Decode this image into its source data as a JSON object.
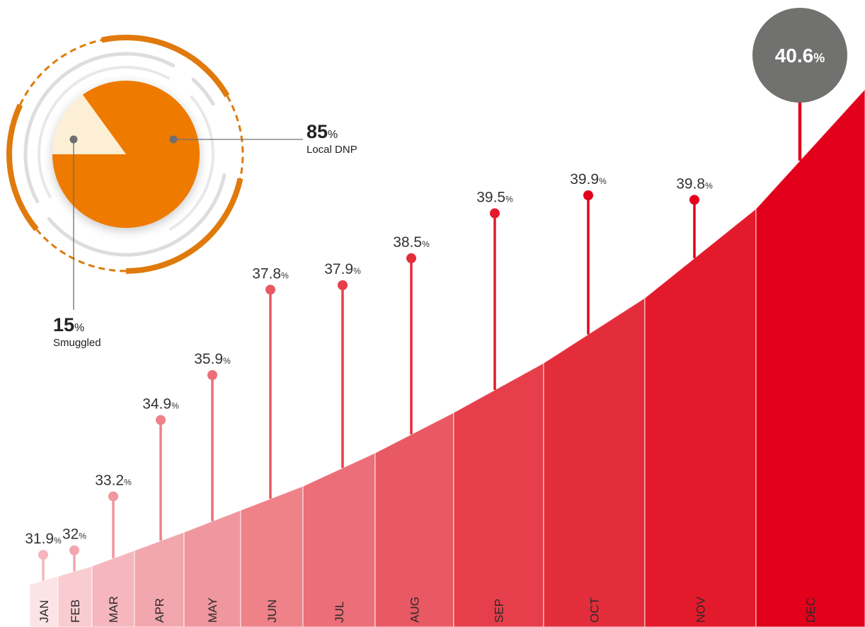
{
  "chart_data": [
    {
      "type": "pie",
      "slices": [
        {
          "label": "Local DNP",
          "value": 85,
          "value_text": "85",
          "unit": "%",
          "color": "#EE7A00"
        },
        {
          "label": "Smuggled",
          "value": 15,
          "value_text": "15",
          "unit": "%",
          "color": "#FDEFD6"
        }
      ],
      "ring_color": "#E07A0C",
      "track_color": "#DDDDDD"
    },
    {
      "type": "area",
      "categories": [
        "JAN",
        "FEB",
        "MAR",
        "APR",
        "MAY",
        "JUN",
        "JUL",
        "AUG",
        "SEP",
        "OCT",
        "NOV",
        "DEC"
      ],
      "values": [
        31.9,
        32,
        33.2,
        34.9,
        35.9,
        37.8,
        37.9,
        38.5,
        39.5,
        39.9,
        39.8,
        40.6
      ],
      "value_labels": [
        "31.9",
        "32",
        "33.2",
        "34.9",
        "35.9",
        "37.8",
        "37.9",
        "38.5",
        "39.5",
        "39.9",
        "39.8",
        "40.6"
      ],
      "unit": "%",
      "colors": [
        "#FBE3E6",
        "#F8CCD1",
        "#F5B6BD",
        "#F2A6AD",
        "#F0969E",
        "#EF8189",
        "#EB6E78",
        "#E85963",
        "#E63E4B",
        "#E42D3B",
        "#E31A2C",
        "#E2001A"
      ],
      "highlight": {
        "category": "DEC",
        "value_text": "40.6",
        "unit": "%",
        "badge_color": "#717170"
      }
    }
  ]
}
